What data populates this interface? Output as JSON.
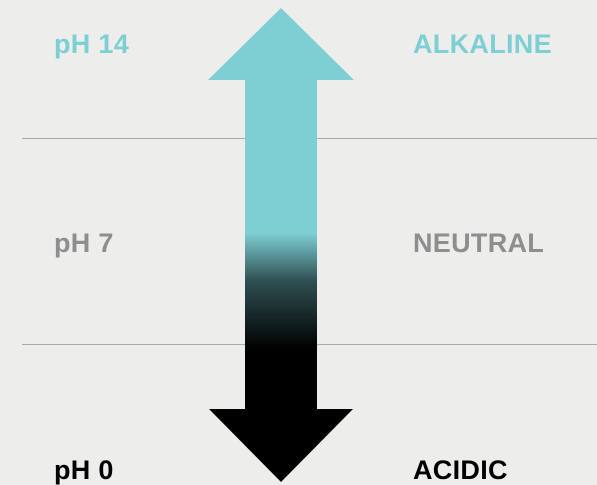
{
  "scale": {
    "levels": [
      {
        "ph_label": "pH 14",
        "description": "ALKALINE"
      },
      {
        "ph_label": "pH 7",
        "description": "NEUTRAL"
      },
      {
        "ph_label": "pH 0",
        "description": "ACIDIC"
      }
    ]
  },
  "colors": {
    "background": "#ededeb",
    "alkaline": "#7ecfd3",
    "neutral": "#8e8e8e",
    "acidic": "#000000",
    "divider": "#a9aaa9"
  }
}
